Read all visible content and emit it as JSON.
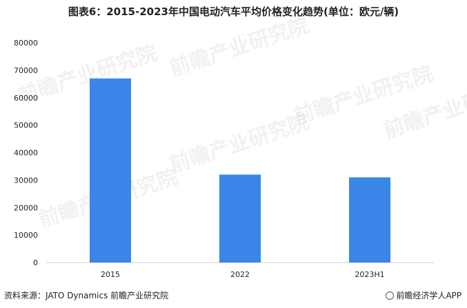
{
  "title": "图表6：2015-2023年中国电动汽车平均价格变化趋势(单位：欧元/辆)",
  "source": "资料来源：JATO Dynamics 前瞻产业研究院",
  "brand": "前瞻经济学人APP",
  "watermark_text": "前瞻产业研究院",
  "colors": {
    "bar": "#3a86e8",
    "axis": "#cccccc",
    "text": "#222222"
  },
  "chart_data": {
    "type": "bar",
    "categories": [
      "2015",
      "2022",
      "2023H1"
    ],
    "values": [
      67000,
      32000,
      31000
    ],
    "ylim": [
      0,
      80000
    ],
    "yticks": [
      0,
      10000,
      20000,
      30000,
      40000,
      50000,
      60000,
      70000,
      80000
    ],
    "grid": false,
    "legend": "none",
    "xlabel": "",
    "ylabel": ""
  }
}
